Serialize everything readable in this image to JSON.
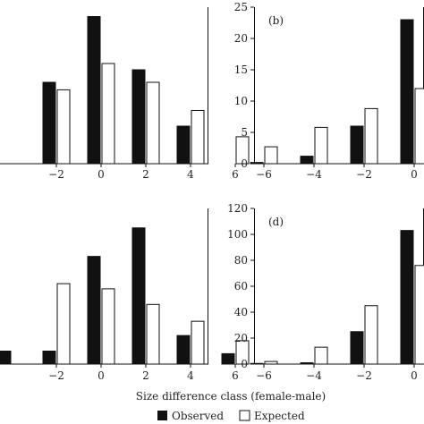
{
  "figure": {
    "xlabel": "Size difference class (female-male)",
    "legend": {
      "observed_label": "Observed",
      "expected_label": "Expected",
      "observed_color": "#111111",
      "expected_color": "#ffffff",
      "placement": "bottom-center"
    }
  },
  "chart_data": [
    {
      "id": "a",
      "type": "bar",
      "panel_label": "",
      "categories": [
        "-4",
        "-2",
        "0",
        "2",
        "4",
        "6"
      ],
      "tick_labels": [
        "−2",
        "0",
        "2",
        "4",
        "6"
      ],
      "series": [
        {
          "name": "Observed",
          "values": [
            0,
            13,
            23.5,
            15,
            6,
            0
          ]
        },
        {
          "name": "Expected",
          "values": [
            0,
            11.8,
            16,
            13,
            8.5,
            4.3
          ]
        }
      ],
      "ylim": [
        0,
        25
      ]
    },
    {
      "id": "b",
      "type": "bar",
      "panel_label": "(b)",
      "categories": [
        "-6",
        "-4",
        "-2",
        "0"
      ],
      "tick_labels": [
        "−6",
        "−4",
        "−2",
        "0"
      ],
      "yticks": [
        "0",
        "5",
        "10",
        "15",
        "20",
        "25"
      ],
      "series": [
        {
          "name": "Observed",
          "values": [
            0.2,
            1.2,
            6,
            23
          ]
        },
        {
          "name": "Expected",
          "values": [
            2.7,
            5.8,
            8.8,
            12
          ]
        }
      ],
      "ylim": [
        0,
        25
      ]
    },
    {
      "id": "c",
      "type": "bar",
      "panel_label": "",
      "categories": [
        "-4",
        "-2",
        "0",
        "2",
        "4",
        "6"
      ],
      "tick_labels": [
        "−2",
        "0",
        "2",
        "4",
        "6"
      ],
      "series": [
        {
          "name": "Observed",
          "values": [
            10,
            10,
            83,
            105,
            22,
            8
          ]
        },
        {
          "name": "Expected",
          "values": [
            0,
            62,
            58,
            46,
            33,
            18
          ]
        }
      ],
      "ylim": [
        0,
        120
      ]
    },
    {
      "id": "d",
      "type": "bar",
      "panel_label": "(d)",
      "categories": [
        "-6",
        "-4",
        "-2",
        "0"
      ],
      "tick_labels": [
        "−6",
        "−4",
        "−2",
        "0"
      ],
      "yticks": [
        "0",
        "20",
        "40",
        "60",
        "80",
        "100",
        "120"
      ],
      "series": [
        {
          "name": "Observed",
          "values": [
            0.5,
            1,
            25,
            103
          ]
        },
        {
          "name": "Expected",
          "values": [
            2,
            13,
            45,
            76
          ]
        }
      ],
      "ylim": [
        0,
        120
      ]
    }
  ]
}
